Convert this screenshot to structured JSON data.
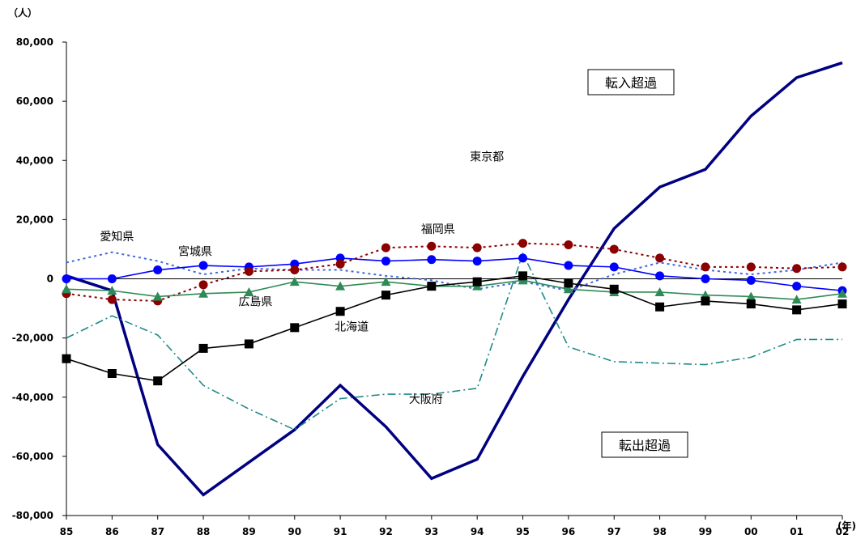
{
  "chart_data": {
    "type": "line",
    "y_unit": "（人）",
    "x_unit": "(年)",
    "categories": [
      "85",
      "86",
      "87",
      "88",
      "89",
      "90",
      "91",
      "92",
      "93",
      "94",
      "95",
      "96",
      "97",
      "98",
      "99",
      "00",
      "01",
      "02"
    ],
    "ylim": [
      -80000,
      80000
    ],
    "yticks": [
      "80,000",
      "60,000",
      "40,000",
      "20,000",
      "0",
      "-20,000",
      "-40,000",
      "-60,000",
      "-80,000"
    ],
    "ytick_values": [
      80000,
      60000,
      40000,
      20000,
      0,
      -20000,
      -40000,
      -60000,
      -80000
    ],
    "grid": false,
    "annotations": {
      "inflow": "転入超過",
      "outflow": "転出超過"
    },
    "series": [
      {
        "name": "東京都",
        "color": "#000080",
        "style": "solid-thick",
        "marker": "none",
        "values": [
          1000,
          -4000,
          -56000,
          -73000,
          -62000,
          -51000,
          -36000,
          -50000,
          -67500,
          -61000,
          -33000,
          -7000,
          17000,
          31000,
          37000,
          55000,
          68000,
          73000
        ]
      },
      {
        "name": "大阪府",
        "color": "#1F8A8A",
        "style": "dashdot",
        "marker": "none",
        "values": [
          -20000,
          -12500,
          -19000,
          -36000,
          -44000,
          -51000,
          -40500,
          -39000,
          -39000,
          -37000,
          8500,
          -23000,
          -28000,
          -28500,
          -29000,
          -26500,
          -20500,
          -20500
        ]
      },
      {
        "name": "愛知県",
        "color": "#4169E1",
        "style": "dotted",
        "marker": "none",
        "values": [
          5500,
          9000,
          6000,
          1500,
          3500,
          3000,
          3000,
          1000,
          -500,
          -3500,
          -1000,
          -4000,
          1500,
          5500,
          3000,
          1500,
          3000,
          5500
        ]
      },
      {
        "name": "宮城県",
        "color": "#0000FF",
        "style": "solid",
        "marker": "circle",
        "values": [
          0,
          0,
          3000,
          4500,
          4000,
          5000,
          7000,
          6000,
          6500,
          6000,
          7000,
          4500,
          4000,
          1000,
          0,
          -500,
          -2500,
          -4000
        ]
      },
      {
        "name": "福岡県",
        "color": "#8B0000",
        "style": "dotted",
        "marker": "circle",
        "values": [
          -5000,
          -7000,
          -7500,
          -2000,
          2500,
          3000,
          5000,
          10500,
          11000,
          10500,
          12000,
          11500,
          10000,
          7000,
          4000,
          4000,
          3500,
          4000
        ]
      },
      {
        "name": "広島県",
        "color": "#2E8B57",
        "style": "solid",
        "marker": "triangle",
        "values": [
          -3500,
          -4000,
          -6000,
          -5000,
          -4500,
          -1000,
          -2500,
          -1000,
          -2500,
          -2500,
          -500,
          -3500,
          -4500,
          -4500,
          -5500,
          -6000,
          -7000,
          -5000
        ]
      },
      {
        "name": "北海道",
        "color": "#000000",
        "style": "solid",
        "marker": "square",
        "values": [
          -27000,
          -32000,
          -34500,
          -23500,
          -22000,
          -16500,
          -11000,
          -5500,
          -2500,
          -1000,
          1000,
          -1500,
          -3500,
          -9500,
          -7500,
          -8500,
          -10500,
          -8500
        ]
      }
    ]
  }
}
